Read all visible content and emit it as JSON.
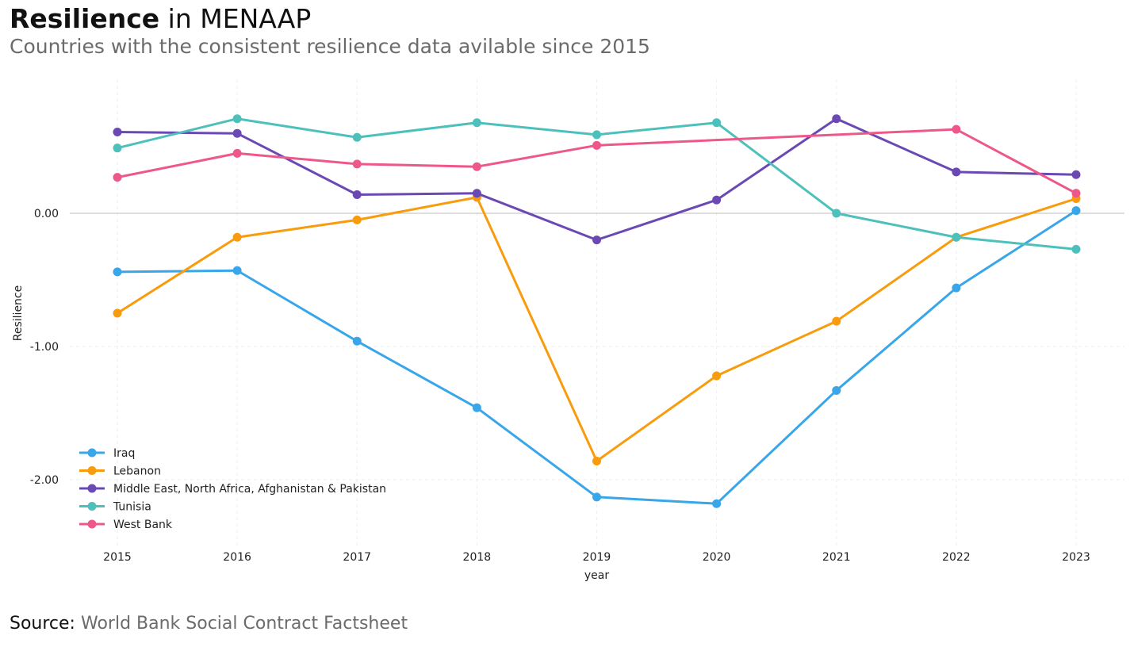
{
  "header": {
    "title_bold": "Resilience",
    "title_rest": " in MENAAP",
    "subtitle": "Countries with the consistent resilience data avilable since 2015"
  },
  "footer": {
    "source_label": "Source:",
    "source_value": "World Bank Social Contract Factsheet"
  },
  "chart_data": {
    "type": "line",
    "title": "Resilience in MENAAP",
    "xlabel": "year",
    "ylabel": "Resilience",
    "x": [
      2015,
      2016,
      2017,
      2018,
      2019,
      2020,
      2021,
      2022,
      2023
    ],
    "x_tick_labels": [
      "2015",
      "2016",
      "2017",
      "2018",
      "2019",
      "2020",
      "2021",
      "2022",
      "2023"
    ],
    "y_ticks": [
      0,
      -1,
      -2
    ],
    "y_tick_labels": [
      "0.00",
      "-1.00",
      "-2.00"
    ],
    "ylim": [
      -2.5,
      0.95
    ],
    "grid": true,
    "legend_position": "bottom-left",
    "series": [
      {
        "name": "Iraq",
        "color": "#3aa6ea",
        "points": [
          [
            2015,
            -0.44
          ],
          [
            2016,
            -0.43
          ],
          [
            2017,
            -0.96
          ],
          [
            2018,
            -1.46
          ],
          [
            2019,
            -2.13
          ],
          [
            2020,
            -2.18
          ],
          [
            2021,
            -1.33
          ],
          [
            2022,
            -0.56
          ],
          [
            2023,
            0.02
          ]
        ]
      },
      {
        "name": "Lebanon",
        "color": "#f89c0e",
        "points": [
          [
            2015,
            -0.75
          ],
          [
            2016,
            -0.18
          ],
          [
            2017,
            -0.05
          ],
          [
            2018,
            0.12
          ],
          [
            2019,
            -1.86
          ],
          [
            2020,
            -1.22
          ],
          [
            2021,
            -0.81
          ],
          [
            2022,
            -0.18
          ],
          [
            2023,
            0.11
          ]
        ]
      },
      {
        "name": "Middle East, North Africa, Afghanistan & Pakistan",
        "color": "#6a49b5",
        "points": [
          [
            2015,
            0.61
          ],
          [
            2016,
            0.6
          ],
          [
            2017,
            0.14
          ],
          [
            2018,
            0.15
          ],
          [
            2019,
            -0.2
          ],
          [
            2020,
            0.1
          ],
          [
            2021,
            0.71
          ],
          [
            2022,
            0.31
          ],
          [
            2023,
            0.29
          ]
        ]
      },
      {
        "name": "Tunisia",
        "color": "#4ec0bb",
        "points": [
          [
            2015,
            0.49
          ],
          [
            2016,
            0.71
          ],
          [
            2017,
            0.57
          ],
          [
            2018,
            0.68
          ],
          [
            2019,
            0.59
          ],
          [
            2020,
            0.68
          ],
          [
            2021,
            0.0
          ],
          [
            2022,
            -0.18
          ],
          [
            2023,
            -0.27
          ]
        ]
      },
      {
        "name": "West Bank",
        "color": "#ee5889",
        "points": [
          [
            2015,
            0.27
          ],
          [
            2016,
            0.45
          ],
          [
            2017,
            0.37
          ],
          [
            2018,
            0.35
          ],
          [
            2019,
            0.51
          ],
          [
            2022,
            0.63
          ],
          [
            2023,
            0.15
          ]
        ]
      }
    ]
  }
}
